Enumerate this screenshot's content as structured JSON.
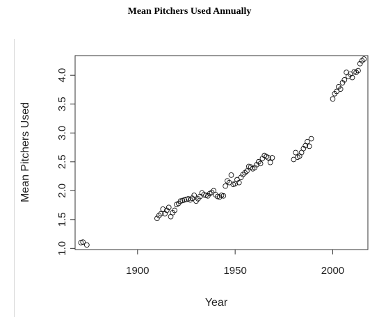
{
  "chart_data": {
    "type": "scatter",
    "title": "Mean Pitchers Used Annually",
    "xlabel": "Year",
    "ylabel": "Mean Pitchers Used",
    "xlim": [
      1868,
      2018
    ],
    "ylim": [
      0.98,
      4.34
    ],
    "xticks": [
      1900,
      1950,
      2000
    ],
    "yticks": [
      1.0,
      1.5,
      2.0,
      2.5,
      3.0,
      3.5,
      4.0
    ],
    "ytick_labels": [
      "1.0",
      "1.5",
      "2.0",
      "2.5",
      "3.0",
      "3.5",
      "4.0"
    ],
    "grid": false,
    "marker": "open-circle",
    "points": [
      [
        1871,
        1.1
      ],
      [
        1872,
        1.11
      ],
      [
        1874,
        1.06
      ],
      [
        1910,
        1.52
      ],
      [
        1911,
        1.57
      ],
      [
        1912,
        1.6
      ],
      [
        1913,
        1.68
      ],
      [
        1914,
        1.6
      ],
      [
        1915,
        1.66
      ],
      [
        1916,
        1.71
      ],
      [
        1917,
        1.55
      ],
      [
        1918,
        1.62
      ],
      [
        1919,
        1.66
      ],
      [
        1920,
        1.76
      ],
      [
        1921,
        1.78
      ],
      [
        1922,
        1.82
      ],
      [
        1923,
        1.83
      ],
      [
        1924,
        1.84
      ],
      [
        1925,
        1.85
      ],
      [
        1926,
        1.86
      ],
      [
        1927,
        1.84
      ],
      [
        1928,
        1.87
      ],
      [
        1929,
        1.92
      ],
      [
        1930,
        1.82
      ],
      [
        1931,
        1.86
      ],
      [
        1932,
        1.9
      ],
      [
        1933,
        1.96
      ],
      [
        1934,
        1.93
      ],
      [
        1935,
        1.92
      ],
      [
        1936,
        1.91
      ],
      [
        1937,
        1.95
      ],
      [
        1938,
        1.97
      ],
      [
        1939,
        2.0
      ],
      [
        1940,
        1.93
      ],
      [
        1941,
        1.9
      ],
      [
        1942,
        1.89
      ],
      [
        1943,
        1.92
      ],
      [
        1944,
        1.91
      ],
      [
        1945,
        2.08
      ],
      [
        1946,
        2.17
      ],
      [
        1947,
        2.14
      ],
      [
        1948,
        2.27
      ],
      [
        1949,
        2.11
      ],
      [
        1950,
        2.12
      ],
      [
        1951,
        2.19
      ],
      [
        1952,
        2.14
      ],
      [
        1953,
        2.23
      ],
      [
        1954,
        2.28
      ],
      [
        1955,
        2.31
      ],
      [
        1956,
        2.34
      ],
      [
        1957,
        2.42
      ],
      [
        1958,
        2.41
      ],
      [
        1959,
        2.38
      ],
      [
        1960,
        2.4
      ],
      [
        1961,
        2.45
      ],
      [
        1962,
        2.5
      ],
      [
        1963,
        2.47
      ],
      [
        1964,
        2.56
      ],
      [
        1965,
        2.61
      ],
      [
        1966,
        2.59
      ],
      [
        1967,
        2.57
      ],
      [
        1968,
        2.49
      ],
      [
        1969,
        2.57
      ],
      [
        1980,
        2.54
      ],
      [
        1981,
        2.66
      ],
      [
        1982,
        2.58
      ],
      [
        1983,
        2.6
      ],
      [
        1984,
        2.66
      ],
      [
        1985,
        2.73
      ],
      [
        1986,
        2.78
      ],
      [
        1987,
        2.85
      ],
      [
        1988,
        2.77
      ],
      [
        1989,
        2.9
      ],
      [
        2000,
        3.59
      ],
      [
        2001,
        3.68
      ],
      [
        2002,
        3.72
      ],
      [
        2003,
        3.8
      ],
      [
        2004,
        3.76
      ],
      [
        2005,
        3.87
      ],
      [
        2006,
        3.92
      ],
      [
        2007,
        4.05
      ],
      [
        2008,
        3.98
      ],
      [
        2009,
        4.02
      ],
      [
        2010,
        3.96
      ],
      [
        2011,
        4.06
      ],
      [
        2012,
        4.05
      ],
      [
        2013,
        4.08
      ],
      [
        2014,
        4.2
      ],
      [
        2015,
        4.25
      ],
      [
        2016,
        4.28
      ]
    ]
  }
}
